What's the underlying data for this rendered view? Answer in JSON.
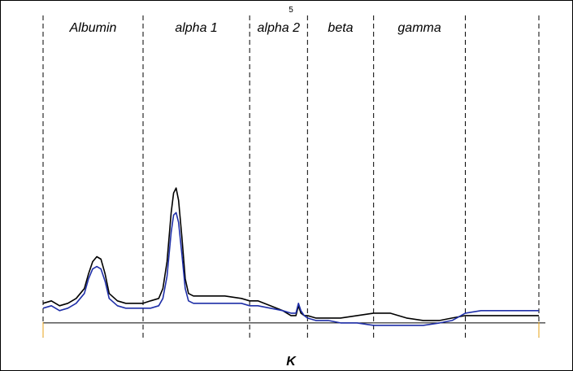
{
  "page_number": "5",
  "chart_data": {
    "type": "line",
    "title": "",
    "xlabel": "K",
    "ylabel": "",
    "grid": false,
    "legend": "none",
    "xlim": [
      0,
      600
    ],
    "ylim": [
      -6,
      65
    ],
    "sections": [
      {
        "label": "Albumin",
        "start": 0,
        "end": 121
      },
      {
        "label": "alpha 1",
        "start": 121,
        "end": 250
      },
      {
        "label": "alpha 2",
        "start": 250,
        "end": 320
      },
      {
        "label": "beta",
        "start": 320,
        "end": 400
      },
      {
        "label": "gamma",
        "start": 400,
        "end": 511
      },
      {
        "label": "",
        "start": 511,
        "end": 600
      }
    ],
    "boundary_markers": [
      0,
      600
    ],
    "series": [
      {
        "color": "#000000",
        "x": [
          0,
          10,
          20,
          30,
          40,
          50,
          55,
          60,
          65,
          70,
          75,
          80,
          90,
          100,
          110,
          121,
          130,
          140,
          145,
          150,
          155,
          158,
          161,
          164,
          168,
          172,
          176,
          182,
          190,
          200,
          220,
          240,
          250,
          260,
          275,
          290,
          300,
          306,
          309,
          312,
          316,
          320,
          330,
          345,
          360,
          380,
          400,
          420,
          440,
          460,
          480,
          495,
          511,
          530,
          550,
          570,
          600
        ],
        "y": [
          8,
          9,
          7,
          8,
          10,
          14,
          20,
          25,
          27,
          26,
          20,
          12,
          9,
          8,
          8,
          8,
          9,
          10,
          14,
          25,
          45,
          53,
          55,
          50,
          35,
          18,
          12,
          11,
          11,
          11,
          11,
          10,
          9,
          9,
          7,
          5,
          3,
          3,
          7,
          4,
          3,
          3,
          2,
          2,
          2,
          3,
          4,
          4,
          2,
          1,
          1,
          2,
          3,
          3,
          3,
          3,
          3
        ]
      },
      {
        "color": "#1f2fa8",
        "x": [
          0,
          10,
          20,
          30,
          40,
          50,
          55,
          60,
          65,
          70,
          75,
          80,
          90,
          100,
          110,
          121,
          130,
          140,
          145,
          150,
          155,
          158,
          161,
          164,
          168,
          172,
          176,
          182,
          190,
          200,
          220,
          240,
          250,
          260,
          275,
          290,
          300,
          306,
          309,
          312,
          316,
          320,
          330,
          345,
          360,
          380,
          400,
          420,
          440,
          460,
          480,
          495,
          511,
          530,
          550,
          570,
          600
        ],
        "y": [
          6,
          7,
          5,
          6,
          8,
          12,
          18,
          22,
          23,
          22,
          17,
          10,
          7,
          6,
          6,
          6,
          6,
          7,
          10,
          19,
          37,
          44,
          45,
          41,
          28,
          14,
          9,
          8,
          8,
          8,
          8,
          8,
          7,
          7,
          6,
          5,
          4,
          4,
          8,
          5,
          3,
          2,
          1,
          1,
          0,
          0,
          -1,
          -1,
          -1,
          -1,
          0,
          1,
          4,
          5,
          5,
          5,
          5
        ]
      }
    ]
  }
}
